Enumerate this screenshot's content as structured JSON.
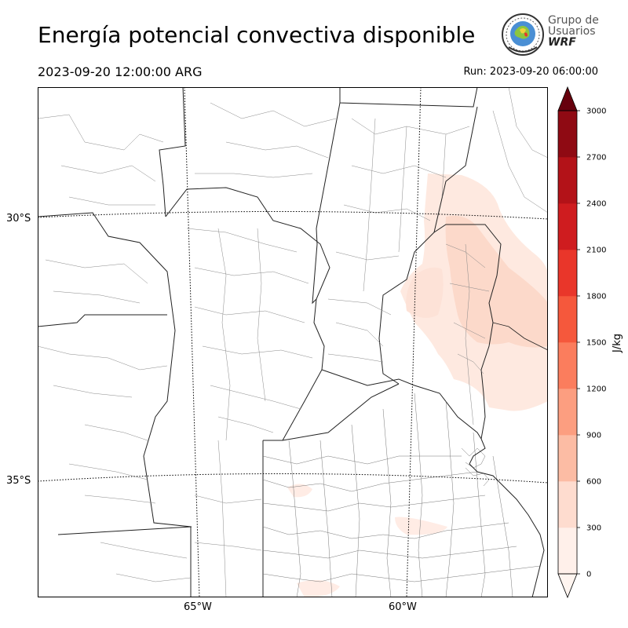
{
  "header": {
    "title": "Energía potencial convectiva disponible",
    "valid_time": "2023-09-20 12:00:00 ARG",
    "run_time": "Run: 2023-09-20 06:00:00"
  },
  "logo": {
    "line1": "Grupo de",
    "line2": "Usuarios",
    "line3": "WRF"
  },
  "map": {
    "lat_labels": [
      "30°S",
      "35°S"
    ],
    "lon_labels": [
      "65°W",
      "60°W"
    ]
  },
  "colorbar": {
    "unit": "J/kg",
    "levels": [
      0,
      300,
      600,
      900,
      1200,
      1500,
      1800,
      2100,
      2400,
      2700,
      3000
    ],
    "tick_labels": [
      "0",
      "300",
      "600",
      "900",
      "1200",
      "1500",
      "1800",
      "2100",
      "2400",
      "2700",
      "3000"
    ],
    "colors": [
      "#fff0ea",
      "#fedccf",
      "#fcbca4",
      "#fc9e80",
      "#fb7d5d",
      "#f5583c",
      "#e9362a",
      "#cf1c1f",
      "#b31218",
      "#8f0a13"
    ],
    "over_color": "#67000d",
    "under_color": "#fff5f0"
  },
  "colors": {
    "cape_low": "#fee7df",
    "cape_mid": "#fdd7c8"
  }
}
